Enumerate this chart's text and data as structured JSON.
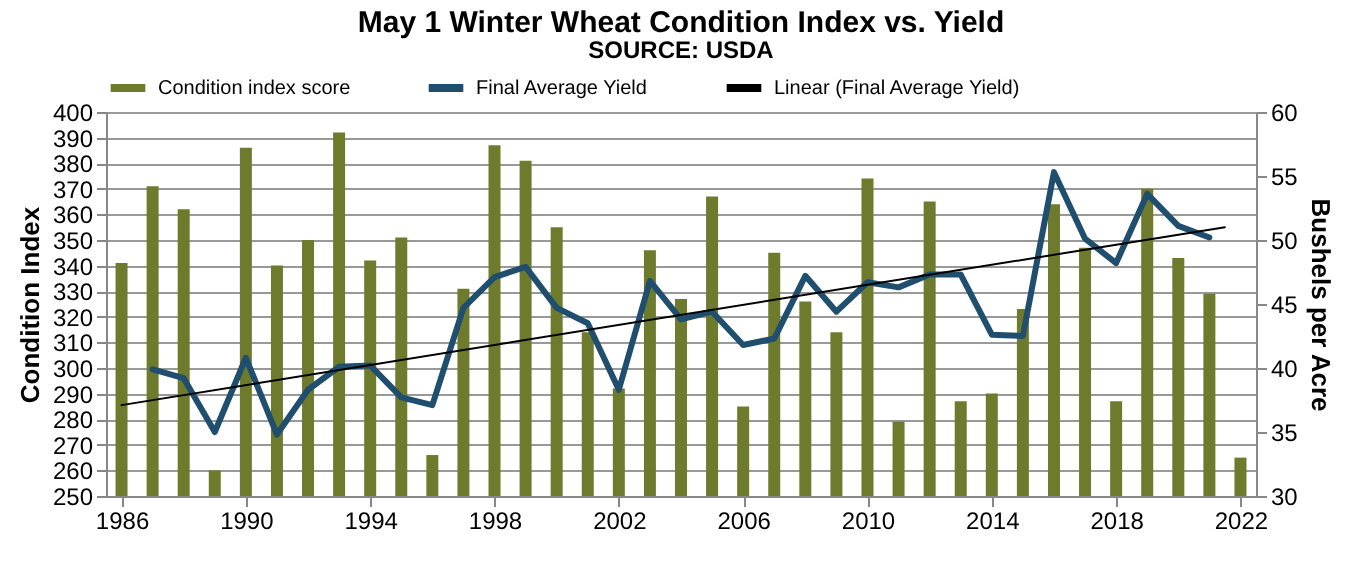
{
  "chart_data": {
    "type": "bar",
    "title": "May 1 Winter Wheat Condition Index vs. Yield",
    "ylabel": "Condition Index",
    "y2label": "Bushels per Acre",
    "annotations": [
      "SOURCE: USDA"
    ],
    "x": [
      1986,
      1987,
      1988,
      1989,
      1990,
      1991,
      1992,
      1993,
      1994,
      1995,
      1996,
      1997,
      1998,
      1999,
      2000,
      2001,
      2002,
      2003,
      2004,
      2005,
      2006,
      2007,
      2008,
      2009,
      2010,
      2011,
      2012,
      2013,
      2014,
      2015,
      2016,
      2017,
      2018,
      2019,
      2020,
      2021,
      2022
    ],
    "series": [
      {
        "name": "Condition index score",
        "color": "#6f7b2c",
        "values": [
          341,
          371,
          362,
          260,
          386,
          340,
          350,
          392,
          342,
          351,
          266,
          331,
          387,
          381,
          355,
          314,
          292,
          346,
          327,
          367,
          285,
          345,
          326,
          314,
          374,
          279,
          365,
          287,
          290,
          323,
          364,
          347,
          287,
          370,
          343,
          329,
          265
        ]
      },
      {
        "name": "Final Average Yield",
        "type": "line",
        "axis": "y2",
        "color": "#1f4e6e",
        "x": [
          1987,
          1988,
          1989,
          1990,
          1991,
          1992,
          1993,
          1994,
          1995,
          1996,
          1997,
          1998,
          1999,
          2000,
          2001,
          2002,
          2003,
          2004,
          2005,
          2006,
          2007,
          2008,
          2009,
          2010,
          2011,
          2012,
          2013,
          2014,
          2015,
          2016,
          2017,
          2018,
          2019,
          2020,
          2021
        ],
        "values": [
          39.9,
          39.2,
          35.0,
          40.8,
          34.8,
          38.3,
          40.1,
          40.2,
          37.7,
          37.1,
          44.7,
          47.1,
          47.9,
          44.7,
          43.5,
          38.3,
          46.8,
          43.8,
          44.4,
          41.8,
          42.3,
          47.2,
          44.4,
          46.7,
          46.3,
          47.3,
          47.3,
          42.6,
          42.5,
          55.3,
          50.1,
          48.2,
          53.6,
          51.1,
          50.2
        ]
      },
      {
        "name": "Linear (Final Average Yield)",
        "type": "line",
        "axis": "y2",
        "color": "#000000",
        "x": [
          1986,
          2021.5
        ],
        "values": [
          37.1,
          51.0
        ]
      }
    ],
    "xlim": [
      1985.5,
      2022.5
    ],
    "xticks": [
      1986,
      1990,
      1994,
      1998,
      2002,
      2006,
      2010,
      2014,
      2018,
      2022
    ],
    "ylim": [
      250,
      400
    ],
    "yticks": [
      250,
      260,
      270,
      280,
      290,
      300,
      310,
      320,
      330,
      340,
      350,
      360,
      370,
      380,
      390,
      400
    ],
    "y2lim": [
      30,
      60
    ],
    "y2ticks": [
      30,
      35,
      40,
      45,
      50,
      55,
      60
    ],
    "grid": "y",
    "legend": "top"
  }
}
